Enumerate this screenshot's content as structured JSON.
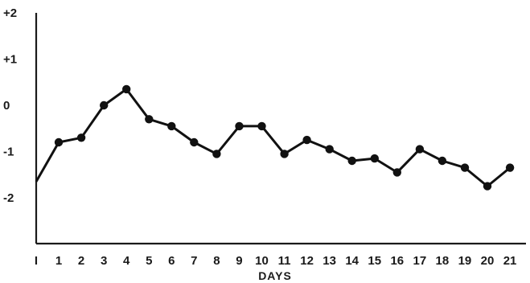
{
  "chart_data": {
    "type": "line",
    "title": "",
    "xlabel": "DAYS",
    "ylabel": "",
    "categories": [
      "I",
      "1",
      "2",
      "3",
      "4",
      "5",
      "6",
      "7",
      "8",
      "9",
      "10",
      "11",
      "12",
      "13",
      "14",
      "15",
      "16",
      "17",
      "18",
      "19",
      "20",
      "21"
    ],
    "series": [
      {
        "values": [
          -1.65,
          -0.8,
          -0.7,
          0.0,
          0.35,
          -0.3,
          -0.45,
          -0.8,
          -1.05,
          -0.45,
          -0.45,
          -1.05,
          -0.75,
          -0.95,
          -1.2,
          -1.15,
          -1.45,
          -0.95,
          -1.2,
          -1.35,
          -1.75,
          -1.35
        ]
      }
    ],
    "y_ticks": [
      {
        "value": 2,
        "label": "+2"
      },
      {
        "value": 1,
        "label": "+1"
      },
      {
        "value": 0,
        "label": "0"
      },
      {
        "value": -1,
        "label": "-1"
      },
      {
        "value": -2,
        "label": "-2"
      }
    ],
    "ylim": [
      -3,
      2
    ],
    "grid": false,
    "colors": {
      "line": "#111111",
      "axis": "#1a1a1a",
      "background": "#ffffff"
    }
  }
}
